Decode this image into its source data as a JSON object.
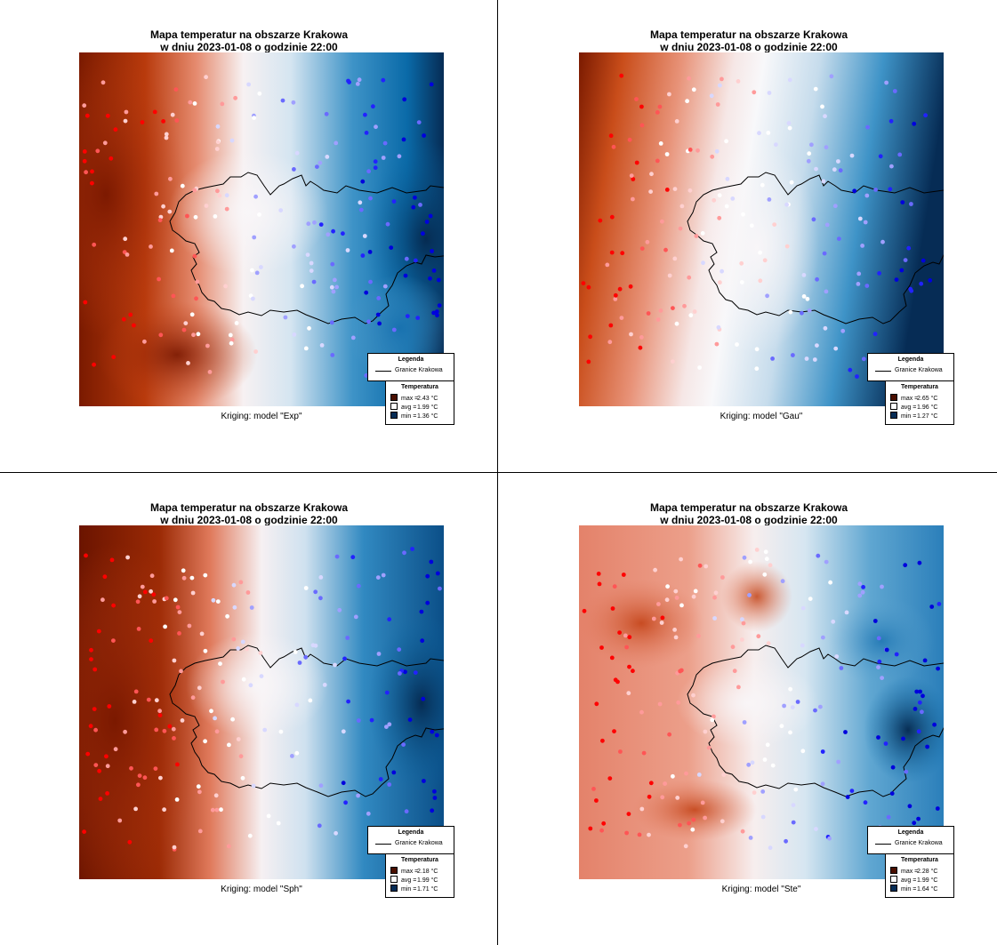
{
  "colors": {
    "hot": "#6b1400",
    "warm": "#c64a16",
    "mid": "#f6eded",
    "cool": "#2d7ab8",
    "cold": "#062c55",
    "boundary": "#000000"
  },
  "legend": {
    "title": "Legenda",
    "boundary_label": "Granice Krakowa",
    "temp_title": "Temperatura"
  },
  "panels": [
    {
      "title_line1": "Mapa temperatur na obszarze Krakowa",
      "title_line2": "w dniu 2023-01-08 o godzinie 22:00",
      "caption": "Kriging: model \"Exp\"",
      "stats": [
        {
          "label": "max =",
          "value": "2.43 °C",
          "swatch": "#4a0f00"
        },
        {
          "label": "avg =",
          "value": "1.99 °C",
          "swatch": "#ffffff"
        },
        {
          "label": "min =",
          "value": "1.36 °C",
          "swatch": "#062c55"
        }
      ]
    },
    {
      "title_line1": "Mapa temperatur na obszarze Krakowa",
      "title_line2": "w dniu 2023-01-08 o godzinie 22:00",
      "caption": "Kriging: model \"Gau\"",
      "stats": [
        {
          "label": "max =",
          "value": "2.65 °C",
          "swatch": "#4a0f00"
        },
        {
          "label": "avg =",
          "value": "1.96 °C",
          "swatch": "#ffffff"
        },
        {
          "label": "min =",
          "value": "1.27 °C",
          "swatch": "#062c55"
        }
      ]
    },
    {
      "title_line1": "Mapa temperatur na obszarze Krakowa",
      "title_line2": "w dniu 2023-01-08 o godzinie 22:00",
      "caption": "Kriging: model \"Sph\"",
      "stats": [
        {
          "label": "max =",
          "value": "2.18 °C",
          "swatch": "#4a0f00"
        },
        {
          "label": "avg =",
          "value": "1.99 °C",
          "swatch": "#ffffff"
        },
        {
          "label": "min =",
          "value": "1.71 °C",
          "swatch": "#062c55"
        }
      ]
    },
    {
      "title_line1": "Mapa temperatur na obszarze Krakowa",
      "title_line2": "w dniu 2023-01-08 o godzinie 22:00",
      "caption": "Kriging: model \"Ste\"",
      "stats": [
        {
          "label": "max =",
          "value": "2.28 °C",
          "swatch": "#4a0f00"
        },
        {
          "label": "avg =",
          "value": "1.99 °C",
          "swatch": "#ffffff"
        },
        {
          "label": "min =",
          "value": "1.64 °C",
          "swatch": "#062c55"
        }
      ]
    }
  ]
}
